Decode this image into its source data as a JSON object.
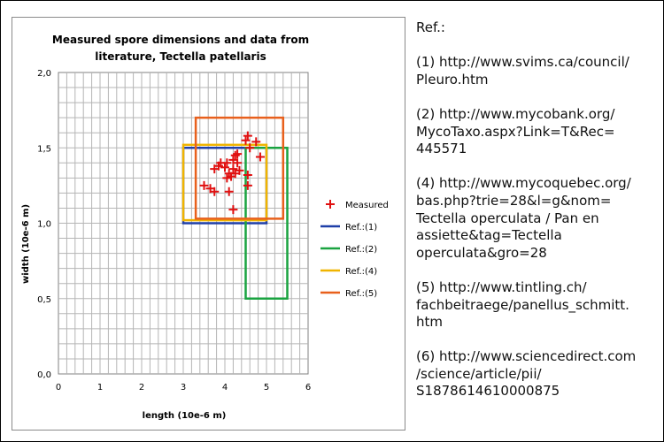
{
  "references": {
    "title": "Ref.:",
    "entries": [
      {
        "id": "1",
        "text": "(1) http://www.svims.ca/council/\nPleuro.htm"
      },
      {
        "id": "2",
        "text": "(2) http://www.mycobank.org/\nMycoTaxo.aspx?Link=T&Rec=\n445571"
      },
      {
        "id": "4",
        "text": "(4) http://www.mycoquebec.org/\nbas.php?trie=28&l=g&nom=\nTectella operculata / Pan en\nassiette&tag=Tectella\noperculata&gro=28"
      },
      {
        "id": "5",
        "text": "(5) http://www.tintling.ch/\nfachbeitraege/panellus_schmitt.\nhtm"
      },
      {
        "id": "6",
        "text": "(6) http://www.sciencedirect.com\n/science/article/pii/\nS1878614610000875"
      }
    ]
  },
  "chart_data": {
    "type": "scatter",
    "title_lines": [
      "Measured spore dimensions and data from",
      "literature,  Tectella patellaris"
    ],
    "xlabel": "length (10e-6 m)",
    "ylabel": "width (10e-6 m)",
    "xlim": [
      0,
      6
    ],
    "ylim": [
      0,
      2
    ],
    "x_ticks": [
      "0",
      "1",
      "2",
      "3",
      "4",
      "5",
      "6"
    ],
    "y_ticks": [
      "0,0",
      "0,5",
      "1,0",
      "1,5",
      "2,0"
    ],
    "grid": true,
    "legend_position": "right",
    "measured": {
      "name": "Measured",
      "color": "#e01010",
      "points": [
        [
          4.55,
          1.58
        ],
        [
          4.5,
          1.55
        ],
        [
          4.75,
          1.54
        ],
        [
          4.6,
          1.5
        ],
        [
          4.25,
          1.45
        ],
        [
          4.3,
          1.46
        ],
        [
          4.85,
          1.44
        ],
        [
          4.2,
          1.42
        ],
        [
          3.9,
          1.4
        ],
        [
          4.05,
          1.4
        ],
        [
          4.3,
          1.4
        ],
        [
          3.85,
          1.38
        ],
        [
          4.0,
          1.37
        ],
        [
          4.2,
          1.36
        ],
        [
          3.75,
          1.36
        ],
        [
          4.35,
          1.35
        ],
        [
          4.1,
          1.33
        ],
        [
          4.25,
          1.33
        ],
        [
          4.15,
          1.31
        ],
        [
          4.55,
          1.32
        ],
        [
          4.05,
          1.3
        ],
        [
          3.5,
          1.25
        ],
        [
          3.65,
          1.23
        ],
        [
          3.75,
          1.21
        ],
        [
          4.1,
          1.21
        ],
        [
          4.55,
          1.25
        ],
        [
          4.2,
          1.09
        ]
      ]
    },
    "reference_boxes": [
      {
        "name": "Ref.:(1)",
        "color": "#1f3fa8",
        "x": [
          3.0,
          5.0
        ],
        "y": [
          1.0,
          1.5
        ]
      },
      {
        "name": "Ref.:(2)",
        "color": "#1aa340",
        "x": [
          4.5,
          5.5
        ],
        "y": [
          0.5,
          1.5
        ]
      },
      {
        "name": "Ref.:(4)",
        "color": "#f0b400",
        "x": [
          3.0,
          5.0
        ],
        "y": [
          1.02,
          1.52
        ]
      },
      {
        "name": "Ref.:(5)",
        "color": "#e8601c",
        "x": [
          3.3,
          5.4
        ],
        "y": [
          1.03,
          1.7
        ]
      }
    ]
  }
}
